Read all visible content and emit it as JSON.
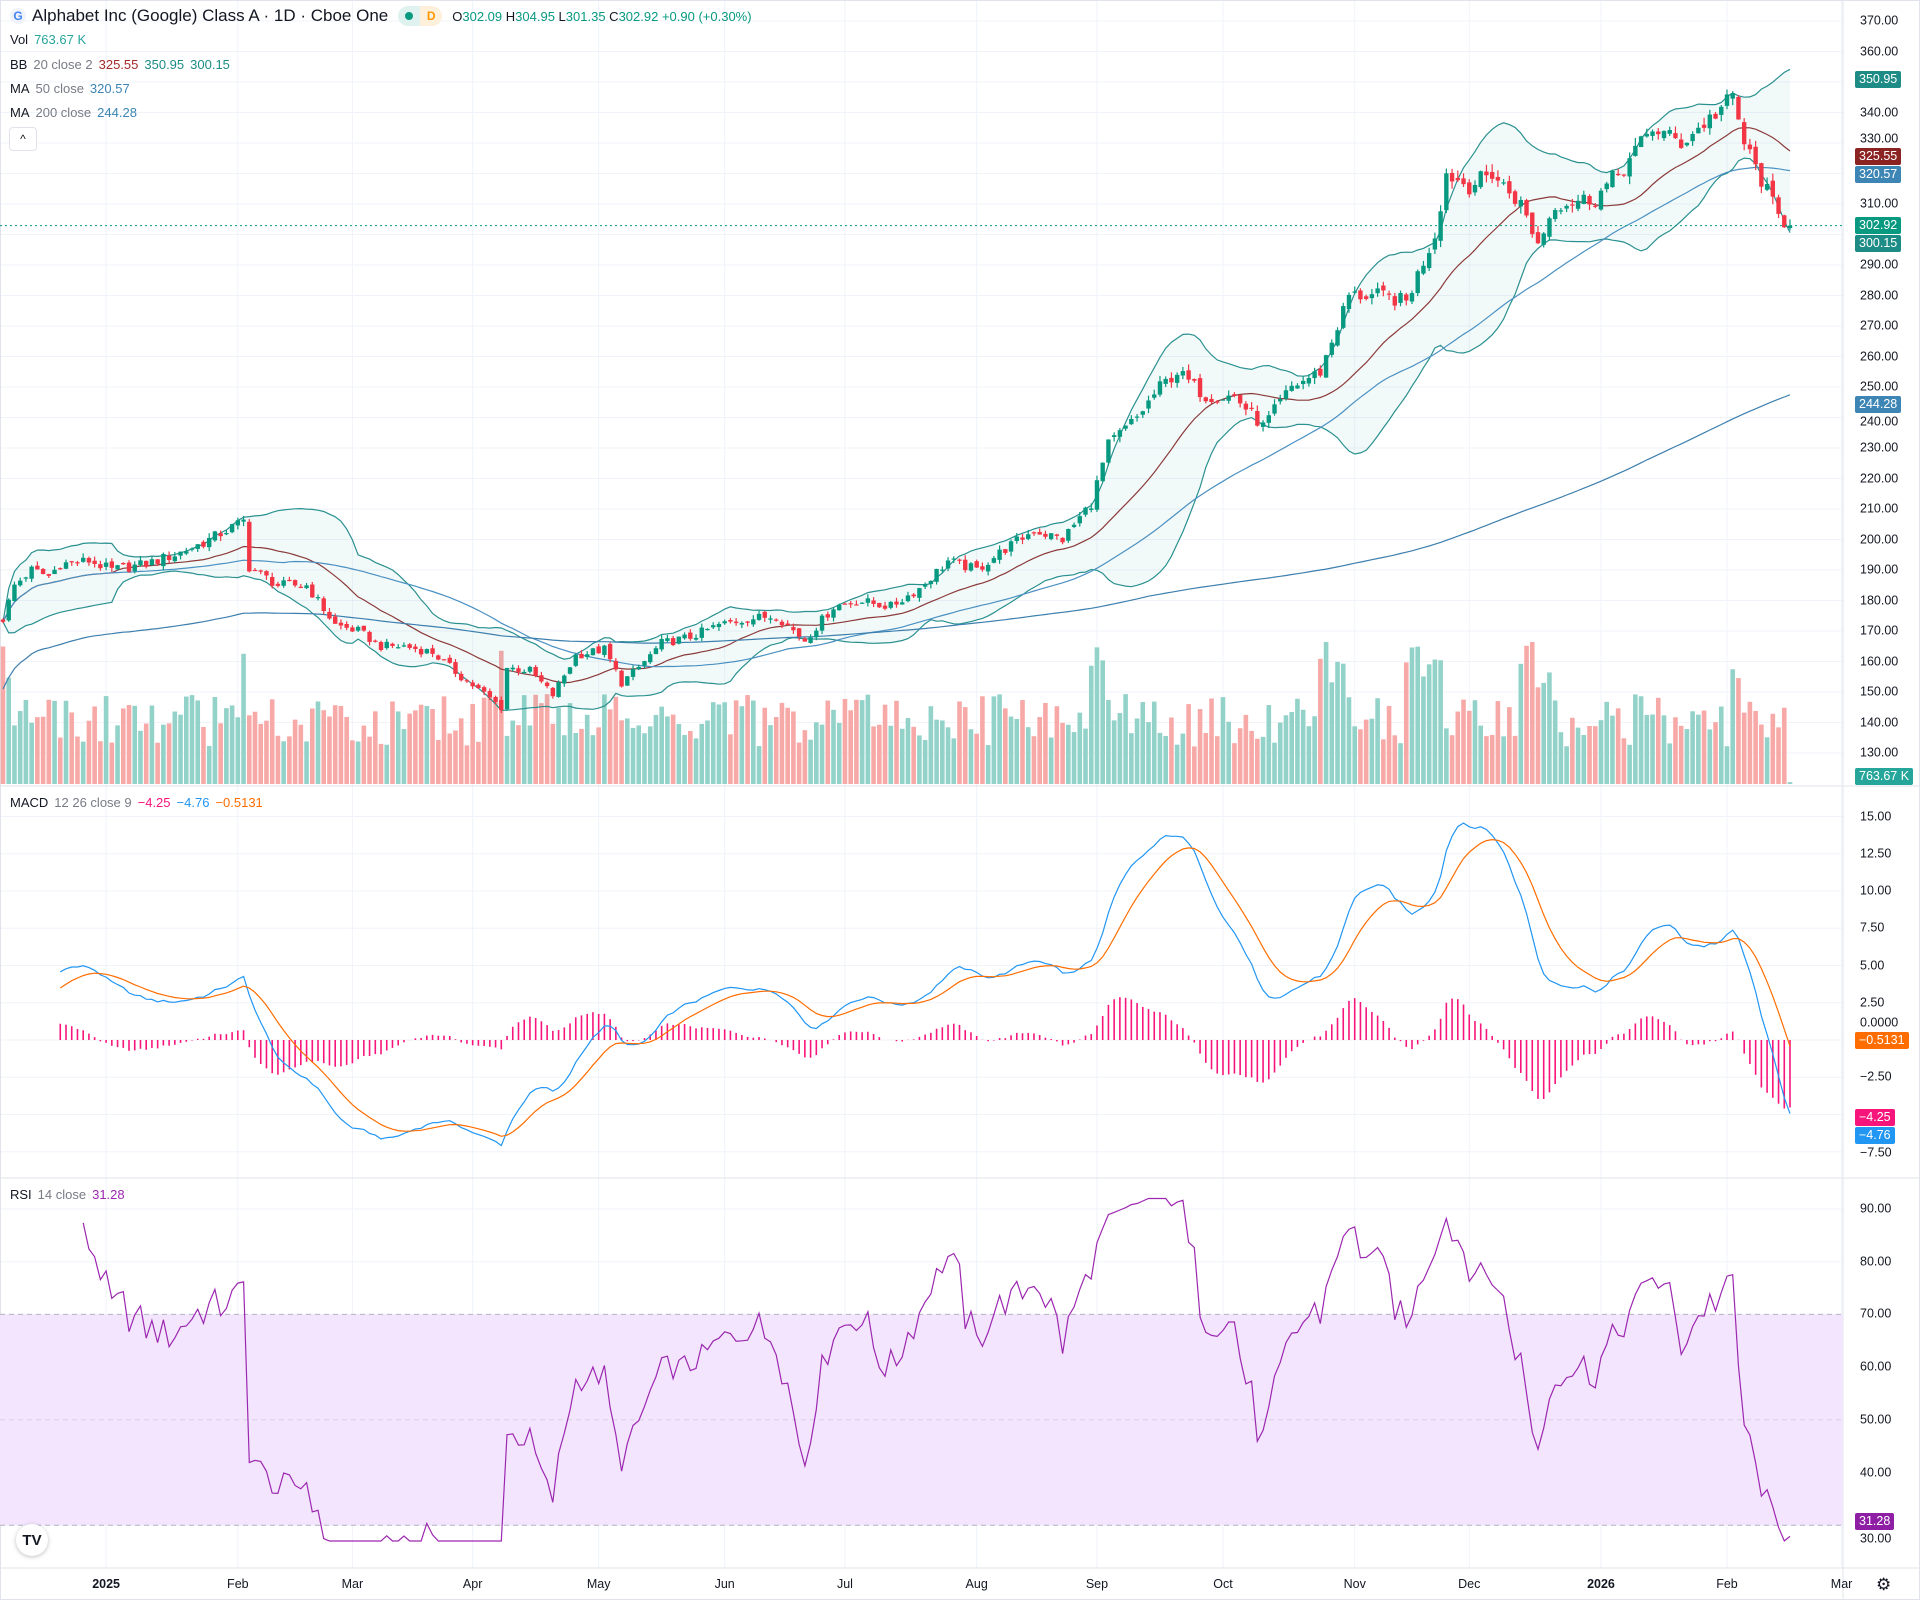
{
  "header": {
    "logo_letter": "G",
    "title": "Alphabet Inc (Google) Class A · 1D · Cboe One",
    "status_letter": "D",
    "ohlc": {
      "o_label": "O",
      "o": "302.09",
      "h_label": "H",
      "h": "304.95",
      "l_label": "L",
      "l": "301.35",
      "c_label": "C",
      "c": "302.92",
      "change": "+0.90 (+0.30%)"
    }
  },
  "legends": {
    "vol": {
      "name": "Vol",
      "value": "763.67 K"
    },
    "bb": {
      "name": "BB",
      "params": "20 close 2",
      "basis": "325.55",
      "upper": "350.95",
      "lower": "300.15"
    },
    "ma50": {
      "name": "MA",
      "params": "50 close",
      "value": "320.57"
    },
    "ma200": {
      "name": "MA",
      "params": "200 close",
      "value": "244.28"
    },
    "macd": {
      "name": "MACD",
      "params": "12 26 close 9",
      "hist": "−4.25",
      "macd": "−4.76",
      "signal": "−0.5131"
    },
    "rsi": {
      "name": "RSI",
      "params": "14 close",
      "value": "31.28"
    }
  },
  "collapse_button": "^",
  "price_axis": {
    "ticks": [
      "370.00",
      "360.00",
      "340.00",
      "330.00",
      "310.00",
      "290.00",
      "280.00",
      "270.00",
      "260.00",
      "250.00",
      "240.00",
      "230.00",
      "220.00",
      "210.00",
      "200.00",
      "190.00",
      "180.00",
      "170.00",
      "160.00",
      "150.00",
      "140.00",
      "130.00"
    ]
  },
  "macd_axis": {
    "ticks": [
      "15.00",
      "12.50",
      "10.00",
      "7.50",
      "5.00",
      "2.50",
      "0.0000",
      "−2.50",
      "−7.50"
    ]
  },
  "rsi_axis": {
    "ticks": [
      "90.00",
      "80.00",
      "70.00",
      "60.00",
      "50.00",
      "40.00",
      "30.00"
    ]
  },
  "badges": {
    "bb_upper": {
      "text": "350.95",
      "value": 350.95,
      "color": "#1e8c86"
    },
    "bb_basis": {
      "text": "325.55",
      "value": 325.55,
      "color": "#8b2323"
    },
    "ma50": {
      "text": "320.57",
      "value": 320.57,
      "color": "#3d85b5"
    },
    "last": {
      "text": "302.92",
      "value": 302.92,
      "color": "#089981"
    },
    "bb_lower": {
      "text": "300.15",
      "value": 300.15,
      "color": "#1e8c86"
    },
    "ma200": {
      "text": "244.28",
      "value": 244.28,
      "color": "#3d85b5"
    },
    "volume": {
      "text": "763.67 K",
      "color": "#26a69a"
    },
    "macd_signal": {
      "text": "−0.5131",
      "value": -0.5131,
      "color": "#ff6d00"
    },
    "macd_hist": {
      "text": "−4.25",
      "value": -4.25,
      "color": "#f7157c"
    },
    "macd_line": {
      "text": "−4.76",
      "value": -4.76,
      "color": "#2196f3"
    },
    "rsi": {
      "text": "31.28",
      "value": 31.28,
      "color": "#8e1fa5"
    }
  },
  "time_axis": {
    "ticks": [
      {
        "month": "2025-01",
        "label": "2025",
        "year": true
      },
      {
        "month": "2025-02",
        "label": "Feb"
      },
      {
        "month": "2025-03",
        "label": "Mar"
      },
      {
        "month": "2025-04",
        "label": "Apr"
      },
      {
        "month": "2025-05",
        "label": "May"
      },
      {
        "month": "2025-06",
        "label": "Jun"
      },
      {
        "month": "2025-07",
        "label": "Jul"
      },
      {
        "month": "2025-08",
        "label": "Aug"
      },
      {
        "month": "2025-09",
        "label": "Sep"
      },
      {
        "month": "2025-10",
        "label": "Oct"
      },
      {
        "month": "2025-11",
        "label": "Nov"
      },
      {
        "month": "2025-12",
        "label": "Dec"
      },
      {
        "month": "2026-01",
        "label": "2026",
        "year": true
      },
      {
        "month": "2026-02",
        "label": "Feb"
      },
      {
        "month": "2026-03",
        "label": "Mar"
      }
    ]
  },
  "branding": {
    "logo_text": "TV"
  },
  "settings_icon": "gear-icon",
  "colors": {
    "up": "#089981",
    "down": "#f23645",
    "bb": "#2a9090",
    "bb_basis": "#8b3a3a",
    "ma50": "#4a90c2",
    "ma200": "#3d7fae",
    "macd": "#2196f3",
    "signal": "#ff6d00",
    "hist": "#f7157c",
    "rsi": "#9c27b0",
    "rsi_band": "#f3e5fd"
  },
  "chart_data": {
    "type": "candlestick",
    "symbol": "Alphabet Inc (Google) Class A",
    "interval": "1D",
    "ylim": [
      125,
      372
    ],
    "close_path": [
      [
        "2024-12-06",
        174
      ],
      [
        "2024-12-10",
        185
      ],
      [
        "2024-12-13",
        190
      ],
      [
        "2024-12-18",
        188
      ],
      [
        "2024-12-20",
        192
      ],
      [
        "2024-12-27",
        193
      ],
      [
        "2025-01-02",
        190
      ],
      [
        "2025-01-10",
        192
      ],
      [
        "2025-01-17",
        195
      ],
      [
        "2025-01-24",
        199
      ],
      [
        "2025-01-31",
        204
      ],
      [
        "2025-02-04",
        206
      ],
      [
        "2025-02-05",
        191
      ],
      [
        "2025-02-12",
        185
      ],
      [
        "2025-02-19",
        185
      ],
      [
        "2025-02-26",
        172
      ],
      [
        "2025-03-04",
        170
      ],
      [
        "2025-03-10",
        165
      ],
      [
        "2025-03-14",
        165
      ],
      [
        "2025-03-21",
        163
      ],
      [
        "2025-03-28",
        155
      ],
      [
        "2025-04-04",
        148
      ],
      [
        "2025-04-08",
        145
      ],
      [
        "2025-04-09",
        158
      ],
      [
        "2025-04-15",
        157
      ],
      [
        "2025-04-21",
        149
      ],
      [
        "2025-04-25",
        162
      ],
      [
        "2025-05-02",
        164
      ],
      [
        "2025-05-07",
        153
      ],
      [
        "2025-05-12",
        158
      ],
      [
        "2025-05-16",
        166
      ],
      [
        "2025-05-23",
        168
      ],
      [
        "2025-05-30",
        172
      ],
      [
        "2025-06-06",
        174
      ],
      [
        "2025-06-13",
        175
      ],
      [
        "2025-06-20",
        167
      ],
      [
        "2025-06-27",
        178
      ],
      [
        "2025-07-03",
        180
      ],
      [
        "2025-07-11",
        178
      ],
      [
        "2025-07-18",
        184
      ],
      [
        "2025-07-25",
        193
      ],
      [
        "2025-08-01",
        190
      ],
      [
        "2025-08-08",
        197
      ],
      [
        "2025-08-15",
        203
      ],
      [
        "2025-08-22",
        200
      ],
      [
        "2025-08-29",
        212
      ],
      [
        "2025-09-03",
        231
      ],
      [
        "2025-09-10",
        240
      ],
      [
        "2025-09-16",
        250
      ],
      [
        "2025-09-19",
        255
      ],
      [
        "2025-09-26",
        247
      ],
      [
        "2025-10-03",
        247
      ],
      [
        "2025-10-10",
        237
      ],
      [
        "2025-10-17",
        250
      ],
      [
        "2025-10-24",
        255
      ],
      [
        "2025-10-31",
        280
      ],
      [
        "2025-11-07",
        280
      ],
      [
        "2025-11-14",
        278
      ],
      [
        "2025-11-21",
        300
      ],
      [
        "2025-11-25",
        320
      ],
      [
        "2025-12-01",
        316
      ],
      [
        "2025-12-05",
        320
      ],
      [
        "2025-12-12",
        310
      ],
      [
        "2025-12-17",
        297
      ],
      [
        "2025-12-22",
        310
      ],
      [
        "2025-12-31",
        312
      ],
      [
        "2026-01-07",
        322
      ],
      [
        "2026-01-14",
        335
      ],
      [
        "2026-01-21",
        330
      ],
      [
        "2026-01-28",
        338
      ],
      [
        "2026-02-03",
        345
      ],
      [
        "2026-02-05",
        330
      ],
      [
        "2026-02-10",
        318
      ],
      [
        "2026-02-13",
        306
      ],
      [
        "2026-02-17",
        302.92
      ]
    ],
    "last_bar": {
      "open": 302.09,
      "high": 304.95,
      "low": 301.35,
      "close": 302.92,
      "volume": "763.67 K"
    },
    "indicators": {
      "bollinger": {
        "length": 20,
        "mult": 2,
        "basis": 325.55,
        "upper": 350.95,
        "lower": 300.15
      },
      "ma50": 320.57,
      "ma200": 244.28,
      "macd": {
        "fast": 12,
        "slow": 26,
        "signal": 9,
        "hist": -4.25,
        "macd": -4.76,
        "signal_value": -0.5131
      },
      "rsi": {
        "length": 14,
        "value": 31.28,
        "upper_band": 70,
        "lower_band": 30
      }
    }
  }
}
